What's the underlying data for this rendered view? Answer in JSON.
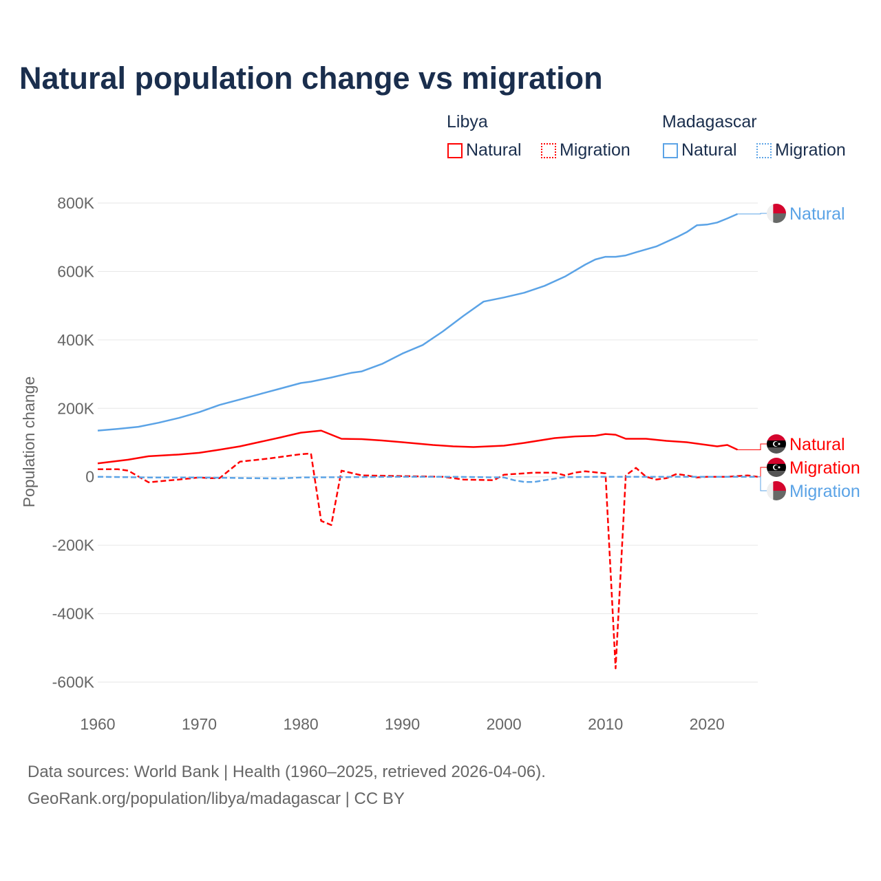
{
  "chart_data": {
    "type": "line",
    "title": "Natural population change vs migration",
    "xlabel": "",
    "ylabel": "Population change",
    "xlim": [
      1960,
      2025
    ],
    "ylim": [
      -600000,
      800000
    ],
    "x_ticks": [
      1960,
      1970,
      1980,
      1990,
      2000,
      2010,
      2020
    ],
    "y_ticks": [
      800000,
      600000,
      400000,
      200000,
      0,
      -200000,
      -400000,
      -600000
    ],
    "y_tick_labels": [
      "800K",
      "600K",
      "400K",
      "200K",
      "0",
      "-200K",
      "-400K",
      "-600K"
    ],
    "grid": true,
    "legend": {
      "placement": "top-right",
      "groups": [
        {
          "name": "Libya",
          "items": [
            "Natural",
            "Migration"
          ],
          "color": "#ff0000"
        },
        {
          "name": "Madagascar",
          "items": [
            "Natural",
            "Migration"
          ],
          "color": "#5ba3e6"
        }
      ]
    },
    "series": [
      {
        "name": "Natural",
        "country": "Madagascar",
        "color": "#5ba3e6",
        "dash": false,
        "end_label": "Natural",
        "x": [
          1960,
          1962,
          1964,
          1966,
          1968,
          1970,
          1972,
          1974,
          1976,
          1978,
          1980,
          1981,
          1983,
          1985,
          1986,
          1988,
          1990,
          1992,
          1994,
          1996,
          1998,
          2000,
          2002,
          2004,
          2006,
          2008,
          2009,
          2010,
          2011,
          2012,
          2013,
          2015,
          2017,
          2018,
          2019,
          2020,
          2021,
          2022,
          2023
        ],
        "y": [
          135000,
          140000,
          146000,
          158000,
          172000,
          189000,
          210000,
          226000,
          242000,
          258000,
          274000,
          278000,
          290000,
          304000,
          308000,
          330000,
          360000,
          385000,
          425000,
          470000,
          512000,
          524000,
          538000,
          558000,
          585000,
          620000,
          635000,
          643000,
          643000,
          647000,
          656000,
          673000,
          700000,
          715000,
          735000,
          737000,
          743000,
          755000,
          768000
        ]
      },
      {
        "name": "Natural",
        "country": "Libya",
        "color": "#ff0000",
        "dash": false,
        "end_label": "Natural",
        "x": [
          1960,
          1963,
          1965,
          1968,
          1970,
          1972,
          1974,
          1976,
          1978,
          1980,
          1982,
          1984,
          1986,
          1988,
          1990,
          1993,
          1995,
          1997,
          2000,
          2002,
          2005,
          2007,
          2009,
          2010,
          2011,
          2012,
          2014,
          2016,
          2018,
          2020,
          2021,
          2022,
          2023
        ],
        "y": [
          39000,
          50000,
          60000,
          65000,
          70000,
          79000,
          89000,
          102000,
          115000,
          129000,
          135000,
          111000,
          110000,
          106000,
          101000,
          93000,
          89000,
          87000,
          91000,
          99000,
          113000,
          118000,
          120000,
          125000,
          123000,
          111000,
          111000,
          105000,
          101000,
          93000,
          89000,
          93000,
          79000
        ]
      },
      {
        "name": "Migration",
        "country": "Libya",
        "color": "#ff0000",
        "dash": true,
        "end_label": "Migration",
        "x": [
          1960,
          1962,
          1963,
          1965,
          1968,
          1970,
          1971,
          1972,
          1974,
          1977,
          1980,
          1981,
          1982,
          1983,
          1984,
          1986,
          1990,
          1994,
          1996,
          1999,
          2000,
          2003,
          2005,
          2006,
          2007,
          2008,
          2010,
          2011,
          2012,
          2013,
          2014,
          2015,
          2016,
          2017,
          2018,
          2019,
          2020,
          2022,
          2024,
          2025
        ],
        "y": [
          22000,
          22000,
          18000,
          -16000,
          -8000,
          -2000,
          -4000,
          -4000,
          44000,
          54000,
          66000,
          68000,
          -129000,
          -141000,
          18000,
          4000,
          2000,
          0,
          -8000,
          -10000,
          6000,
          12000,
          12000,
          4000,
          12000,
          16000,
          10000,
          -560000,
          4000,
          26000,
          0,
          -8000,
          -4000,
          8000,
          4000,
          -2000,
          0,
          0,
          4000,
          0
        ]
      },
      {
        "name": "Migration",
        "country": "Madagascar",
        "color": "#5ba3e6",
        "dash": true,
        "end_label": "Migration",
        "x": [
          1960,
          1965,
          1970,
          1975,
          1978,
          1980,
          1985,
          1990,
          1995,
          2000,
          2001,
          2002,
          2003,
          2004,
          2006,
          2010,
          2015,
          2020,
          2025
        ],
        "y": [
          0,
          -2000,
          -2000,
          -4000,
          -5000,
          -2000,
          -1000,
          0,
          0,
          -2000,
          -10000,
          -15000,
          -15000,
          -10000,
          -1000,
          0,
          0,
          0,
          0
        ]
      }
    ]
  },
  "source_line1": "Data sources: World Bank | Health (1960–2025, retrieved 2026-04-06).",
  "source_line2": "GeoRank.org/population/libya/madagascar | CC BY"
}
